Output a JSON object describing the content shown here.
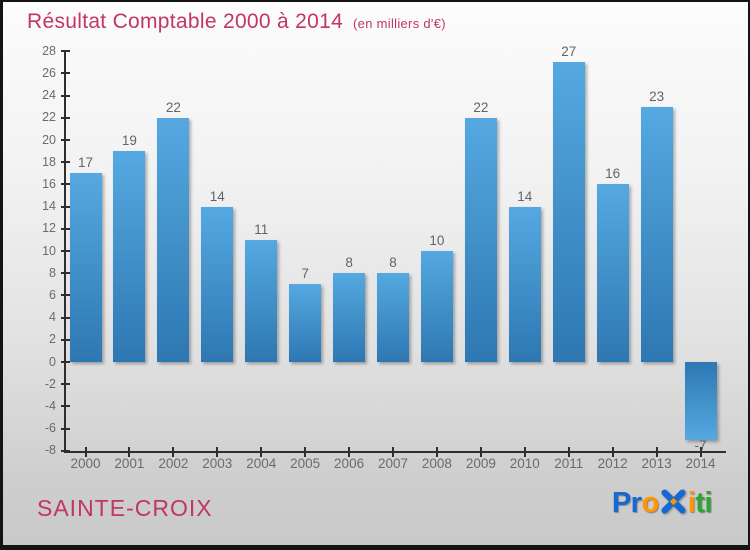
{
  "chart_data": {
    "type": "bar",
    "title": "Résultat Comptable 2000 à 2014",
    "subtitle": "(en milliers d'€)",
    "categories": [
      "2000",
      "2001",
      "2002",
      "2003",
      "2004",
      "2005",
      "2006",
      "2007",
      "2008",
      "2009",
      "2010",
      "2011",
      "2012",
      "2013",
      "2014"
    ],
    "values": [
      17,
      19,
      22,
      14,
      11,
      7,
      8,
      8,
      10,
      22,
      14,
      27,
      16,
      23,
      -7
    ],
    "xlabel": "",
    "ylabel": "",
    "ylim": [
      -8,
      28
    ],
    "ytick_step": 2,
    "grid": false,
    "legend": "none",
    "bar_value_labels": [
      "17",
      "19",
      "22",
      "14",
      "11",
      "7",
      "8",
      "8",
      "10",
      "22",
      "14",
      "27",
      "16",
      "23",
      "-7"
    ]
  },
  "colors": {
    "title_pink": "#c13568",
    "bar_top": "#55a9e0",
    "bar_bottom": "#2e77b2",
    "axis": "#2e2e2e",
    "tick_label": "#6b6b6b",
    "value_label": "#646464"
  },
  "footer": {
    "commune_name": "SAINTE-CROIX",
    "logo": {
      "brand": "Proxiti",
      "segments": [
        {
          "text": "Pr",
          "color": "#1668d2"
        },
        {
          "text": "o",
          "color": "#ff9500"
        },
        {
          "icon": "x-mark",
          "color": "#1668d2",
          "accent": "#ff9500"
        },
        {
          "text": "i",
          "color": "#ff9500"
        },
        {
          "text": "t",
          "color": "#2fa336"
        },
        {
          "text": "i",
          "color": "#2fa336"
        }
      ]
    }
  }
}
